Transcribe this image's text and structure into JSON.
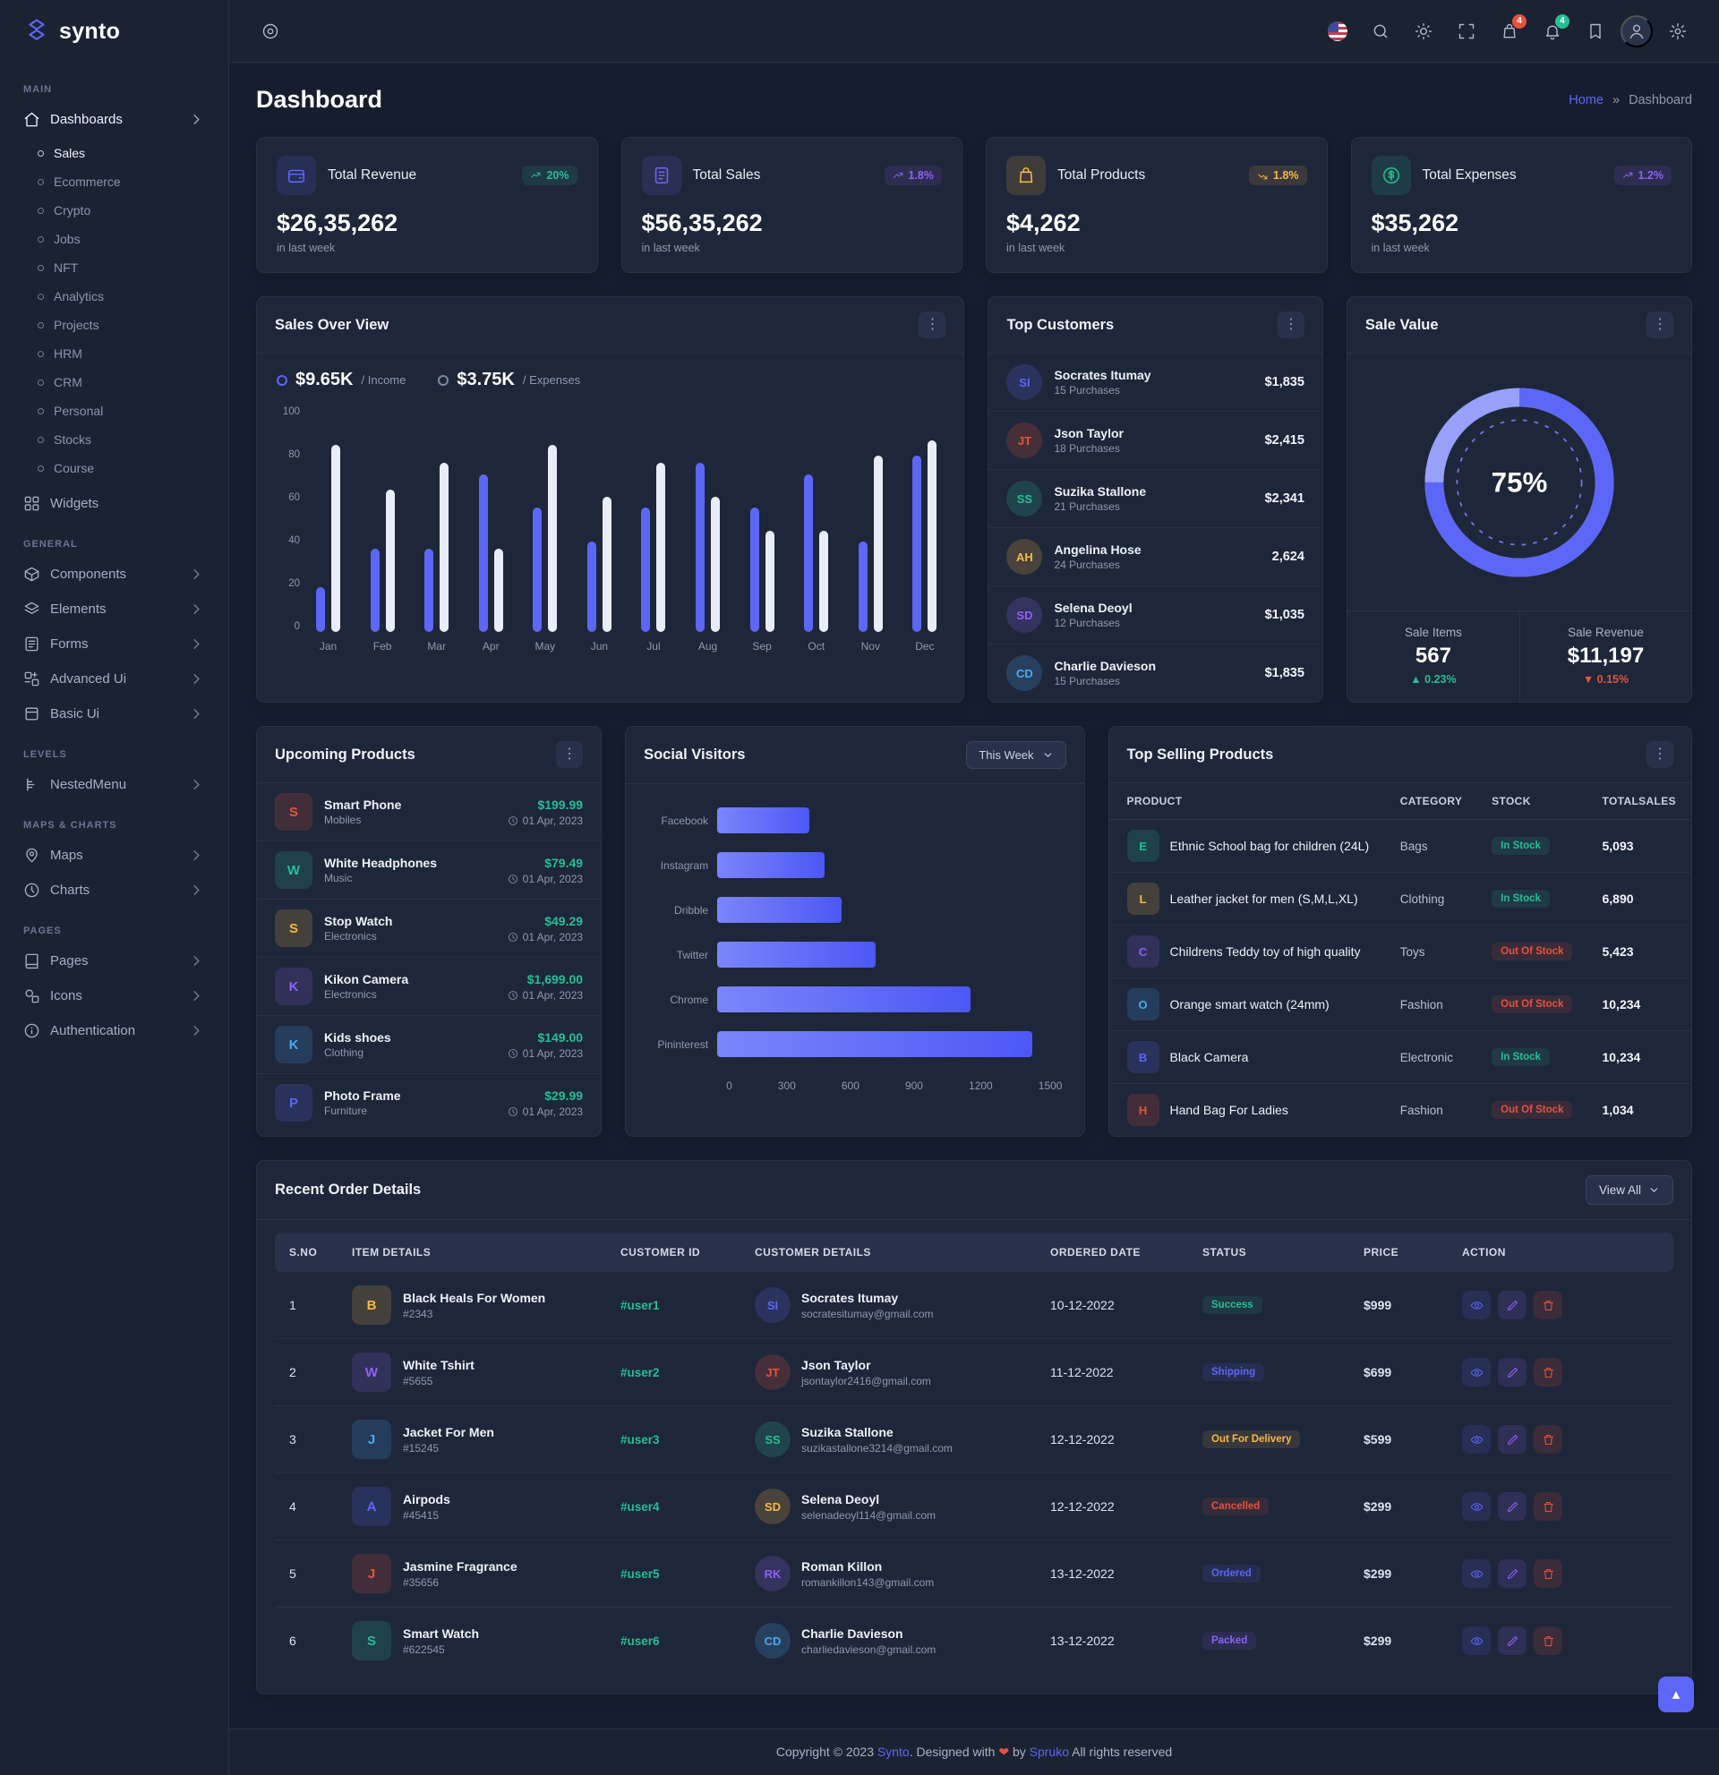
{
  "brand": {
    "name": "synto"
  },
  "colors": {
    "primary": "#5c67f7",
    "success": "#26bf94",
    "danger": "#e6533c",
    "warning": "#f5b849",
    "violet": "#8e62f5",
    "bar_income": "#5c67f7",
    "bar_expense": "#e9edf7"
  },
  "header": {
    "cart_badge": "4",
    "bell_badge": "4"
  },
  "page": {
    "title": "Dashboard",
    "breadcrumb_home": "Home",
    "breadcrumb_sep": "»",
    "breadcrumb_current": "Dashboard"
  },
  "sidebar": {
    "sections": [
      {
        "label": "MAIN",
        "items": [
          {
            "label": "Dashboards",
            "icon": "home",
            "chevron": true,
            "active": true,
            "children": [
              {
                "label": "Sales",
                "active": true
              },
              {
                "label": "Ecommerce"
              },
              {
                "label": "Crypto"
              },
              {
                "label": "Jobs"
              },
              {
                "label": "NFT"
              },
              {
                "label": "Analytics"
              },
              {
                "label": "Projects"
              },
              {
                "label": "HRM"
              },
              {
                "label": "CRM"
              },
              {
                "label": "Personal"
              },
              {
                "label": "Stocks"
              },
              {
                "label": "Course"
              }
            ]
          },
          {
            "label": "Widgets",
            "icon": "grid"
          }
        ]
      },
      {
        "label": "GENERAL",
        "items": [
          {
            "label": "Components",
            "icon": "box",
            "chevron": true
          },
          {
            "label": "Elements",
            "icon": "layers",
            "chevron": true
          },
          {
            "label": "Forms",
            "icon": "form",
            "chevron": true
          },
          {
            "label": "Advanced Ui",
            "icon": "stack",
            "chevron": true
          },
          {
            "label": "Basic Ui",
            "icon": "note",
            "chevron": true
          }
        ]
      },
      {
        "label": "LEVELS",
        "items": [
          {
            "label": "NestedMenu",
            "icon": "nested",
            "chevron": true
          }
        ]
      },
      {
        "label": "MAPS & CHARTS",
        "items": [
          {
            "label": "Maps",
            "icon": "pin",
            "chevron": true
          },
          {
            "label": "Charts",
            "icon": "clock",
            "chevron": true
          }
        ]
      },
      {
        "label": "PAGES",
        "items": [
          {
            "label": "Pages",
            "icon": "book",
            "chevron": true
          },
          {
            "label": "Icons",
            "icon": "shapes",
            "chevron": true
          },
          {
            "label": "Authentication",
            "icon": "info",
            "chevron": true
          }
        ]
      }
    ]
  },
  "stats": [
    {
      "title": "Total Revenue",
      "value": "$26,35,262",
      "period": "in last week",
      "change": "20%",
      "trend": "up",
      "accent": "#5c67f7",
      "badge_color": "#26bf94",
      "icon": "wallet"
    },
    {
      "title": "Total Sales",
      "value": "$56,35,262",
      "period": "in last week",
      "change": "1.8%",
      "trend": "up",
      "accent": "#7066f0",
      "badge_color": "#8e62f5",
      "icon": "doc"
    },
    {
      "title": "Total Products",
      "value": "$4,262",
      "period": "in last week",
      "change": "1.8%",
      "trend": "down",
      "accent": "#f5b849",
      "badge_color": "#f5b849",
      "icon": "bag"
    },
    {
      "title": "Total Expenses",
      "value": "$35,262",
      "period": "in last week",
      "change": "1.2%",
      "trend": "up",
      "accent": "#26bf94",
      "badge_color": "#8e62f5",
      "icon": "dollar"
    }
  ],
  "sales_overview": {
    "title": "Sales Over View",
    "income_value": "$9.65K",
    "income_label": "/ Income",
    "expenses_value": "$3.75K",
    "expenses_label": "/ Expenses",
    "chart_data": {
      "type": "bar",
      "categories": [
        "Jan",
        "Feb",
        "Mar",
        "Apr",
        "May",
        "Jun",
        "Jul",
        "Aug",
        "Sep",
        "Oct",
        "Nov",
        "Dec"
      ],
      "series": [
        {
          "name": "Income",
          "values": [
            20,
            37,
            37,
            70,
            55,
            40,
            55,
            75,
            55,
            70,
            40,
            78
          ]
        },
        {
          "name": "Expenses",
          "values": [
            83,
            63,
            75,
            37,
            83,
            60,
            75,
            60,
            45,
            45,
            78,
            85
          ]
        }
      ],
      "ylim": [
        0,
        100
      ],
      "yticks": [
        0,
        20,
        40,
        60,
        80,
        100
      ]
    }
  },
  "top_customers": {
    "title": "Top Customers",
    "items": [
      {
        "name": "Socrates Itumay",
        "purchases": "15 Purchases",
        "amount": "$1,835"
      },
      {
        "name": "Json Taylor",
        "purchases": "18 Purchases",
        "amount": "$2,415"
      },
      {
        "name": "Suzika Stallone",
        "purchases": "21 Purchases",
        "amount": "$2,341"
      },
      {
        "name": "Angelina Hose",
        "purchases": "24 Purchases",
        "amount": "2,624"
      },
      {
        "name": "Selena Deoyl",
        "purchases": "12 Purchases",
        "amount": "$1,035"
      },
      {
        "name": "Charlie Davieson",
        "purchases": "15 Purchases",
        "amount": "$1,835"
      }
    ]
  },
  "sale_value": {
    "title": "Sale Value",
    "percent": 75,
    "percent_label": "75%",
    "items_label": "Sale Items",
    "items_value": "567",
    "items_change": "0.23%",
    "revenue_label": "Sale Revenue",
    "revenue_value": "$11,197",
    "revenue_change": "0.15%"
  },
  "upcoming_products": {
    "title": "Upcoming Products",
    "items": [
      {
        "name": "Smart Phone",
        "category": "Mobiles",
        "price": "$199.99",
        "date": "01 Apr, 2023"
      },
      {
        "name": "White Headphones",
        "category": "Music",
        "price": "$79.49",
        "date": "01 Apr, 2023"
      },
      {
        "name": "Stop Watch",
        "category": "Electronics",
        "price": "$49.29",
        "date": "01 Apr, 2023"
      },
      {
        "name": "Kikon Camera",
        "category": "Electronics",
        "price": "$1,699.00",
        "date": "01 Apr, 2023"
      },
      {
        "name": "Kids shoes",
        "category": "Clothing",
        "price": "$149.00",
        "date": "01 Apr, 2023"
      },
      {
        "name": "Photo Frame",
        "category": "Furniture",
        "price": "$29.99",
        "date": "01 Apr, 2023"
      }
    ]
  },
  "social_visitors": {
    "title": "Social Visitors",
    "filter": "This Week",
    "chart_data": {
      "type": "bar",
      "orientation": "horizontal",
      "categories": [
        "Facebook",
        "Instagram",
        "Dribble",
        "Twitter",
        "Chrome",
        "Pininterest"
      ],
      "values": [
        400,
        465,
        540,
        690,
        1100,
        1370
      ],
      "xlim": [
        0,
        1500
      ],
      "xticks": [
        0,
        300,
        600,
        900,
        1200,
        1500
      ]
    }
  },
  "top_selling": {
    "title": "Top Selling Products",
    "columns": [
      "PRODUCT",
      "CATEGORY",
      "STOCK",
      "TOTALSALES"
    ],
    "rows": [
      {
        "product": "Ethnic School bag for children (24L)",
        "category": "Bags",
        "stock": "In Stock",
        "sales": "5,093"
      },
      {
        "product": "Leather jacket for men (S,M,L,XL)",
        "category": "Clothing",
        "stock": "In Stock",
        "sales": "6,890"
      },
      {
        "product": "Childrens Teddy toy of high quality",
        "category": "Toys",
        "stock": "Out Of Stock",
        "sales": "5,423"
      },
      {
        "product": "Orange smart watch (24mm)",
        "category": "Fashion",
        "stock": "Out Of Stock",
        "sales": "10,234"
      },
      {
        "product": "Black Camera",
        "category": "Electronic",
        "stock": "In Stock",
        "sales": "10,234"
      },
      {
        "product": "Hand Bag For Ladies",
        "category": "Fashion",
        "stock": "Out Of Stock",
        "sales": "1,034"
      }
    ]
  },
  "recent_orders": {
    "title": "Recent Order Details",
    "view_all": "View All",
    "columns": [
      "S.NO",
      "ITEM DETAILS",
      "CUSTOMER ID",
      "CUSTOMER DETAILS",
      "ORDERED DATE",
      "STATUS",
      "PRICE",
      "ACTION"
    ],
    "rows": [
      {
        "sno": "1",
        "item": "Black Heals For Women",
        "item_id": "#2343",
        "customer_id": "#user1",
        "customer": "Socrates Itumay",
        "email": "socratesitumay@gmail.com",
        "date": "10-12-2022",
        "status": "Success",
        "price": "$999"
      },
      {
        "sno": "2",
        "item": "White Tshirt",
        "item_id": "#5655",
        "customer_id": "#user2",
        "customer": "Json Taylor",
        "email": "jsontaylor2416@gmail.com",
        "date": "11-12-2022",
        "status": "Shipping",
        "price": "$699"
      },
      {
        "sno": "3",
        "item": "Jacket For Men",
        "item_id": "#15245",
        "customer_id": "#user3",
        "customer": "Suzika Stallone",
        "email": "suzikastallone3214@gmail.com",
        "date": "12-12-2022",
        "status": "Out For Delivery",
        "price": "$599"
      },
      {
        "sno": "4",
        "item": "Airpods",
        "item_id": "#45415",
        "customer_id": "#user4",
        "customer": "Selena Deoyl",
        "email": "selenadeoyl114@gmail.com",
        "date": "12-12-2022",
        "status": "Cancelled",
        "price": "$299"
      },
      {
        "sno": "5",
        "item": "Jasmine Fragrance",
        "item_id": "#35656",
        "customer_id": "#user5",
        "customer": "Roman Killon",
        "email": "romankillon143@gmail.com",
        "date": "13-12-2022",
        "status": "Ordered",
        "price": "$299"
      },
      {
        "sno": "6",
        "item": "Smart Watch",
        "item_id": "#622545",
        "customer_id": "#user6",
        "customer": "Charlie Davieson",
        "email": "charliedavieson@gmail.com",
        "date": "13-12-2022",
        "status": "Packed",
        "price": "$299"
      }
    ]
  },
  "footer": {
    "copyright": "Copyright © 2023",
    "brand": "Synto",
    "designed": ". Designed with",
    "heart": "❤",
    "by": "by",
    "designer": "Spruko",
    "rights": "All rights reserved"
  }
}
